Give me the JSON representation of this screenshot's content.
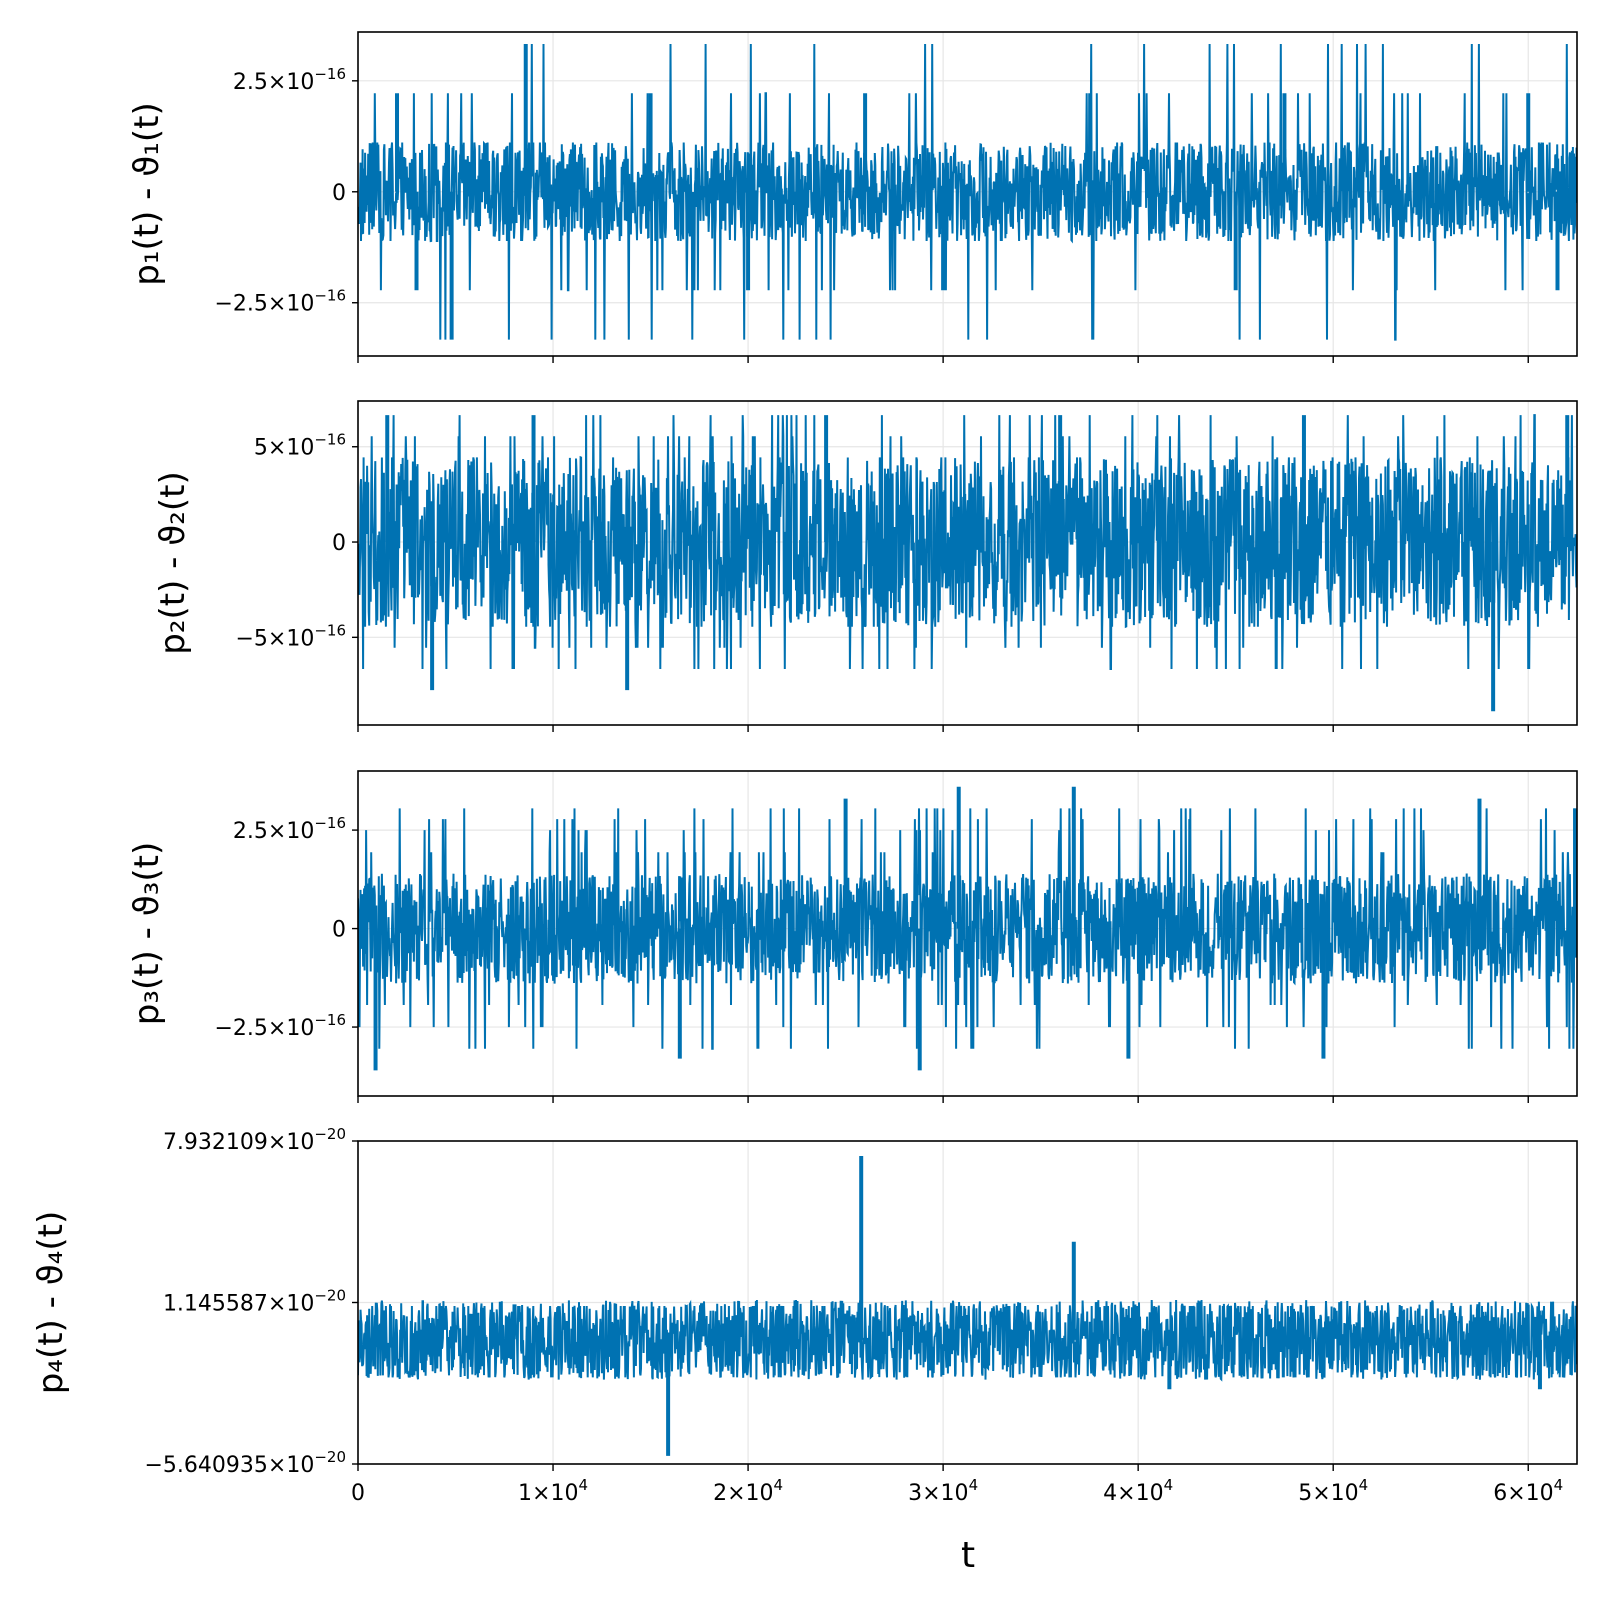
{
  "figure": {
    "line_color": "#0072b2",
    "grid_color": "#e6e6e6",
    "frame_color": "#000000",
    "xlabel": "t",
    "x_ticks": [
      {
        "value": 0,
        "mant": "0",
        "exp": ""
      },
      {
        "value": 10000,
        "mant": "1×10",
        "exp": "4"
      },
      {
        "value": 20000,
        "mant": "2×10",
        "exp": "4"
      },
      {
        "value": 30000,
        "mant": "3×10",
        "exp": "4"
      },
      {
        "value": 40000,
        "mant": "4×10",
        "exp": "4"
      },
      {
        "value": 50000,
        "mant": "5×10",
        "exp": "4"
      },
      {
        "value": 60000,
        "mant": "6×10",
        "exp": "4"
      }
    ]
  },
  "chart_data": [
    {
      "type": "line",
      "ylabel": "p₁(t) - ϑ₁(t)",
      "xlim": [
        0,
        62500
      ],
      "ylim": [
        -3.7e-16,
        3.6e-16
      ],
      "y_ticks": [
        {
          "value": 2.5e-16,
          "mant": "2.5×10",
          "exp": "−16"
        },
        {
          "value": 0,
          "mant": "0",
          "exp": ""
        },
        {
          "value": -2.5e-16,
          "mant": "−2.5×10",
          "exp": "−16"
        }
      ],
      "series": [
        {
          "signal": {
            "levels": [
              -3.33e-16,
              -2.22e-16,
              -1.11e-16,
              0,
              1.11e-16,
              2.22e-16,
              3.33e-16
            ],
            "core_range": [
              -1.11e-16,
              1.11e-16
            ]
          },
          "peaks": [
            [
              8600,
              3.33e-16
            ],
            [
              4800,
              -3.33e-16
            ],
            [
              2000,
              2.22e-16
            ],
            [
              15000,
              2.22e-16
            ],
            [
              26000,
              2.22e-16
            ],
            [
              47500,
              2.22e-16
            ],
            [
              60000,
              2.22e-16
            ],
            [
              3000,
              -2.22e-16
            ],
            [
              20000,
              -2.22e-16
            ],
            [
              30000,
              -2.22e-16
            ],
            [
              45000,
              -2.22e-16
            ],
            [
              61500,
              -2.22e-16
            ]
          ]
        }
      ]
    },
    {
      "type": "line",
      "ylabel": "p₂(t) - ϑ₂(t)",
      "xlim": [
        0,
        62500
      ],
      "ylim": [
        -9.6e-16,
        7.4e-16
      ],
      "y_ticks": [
        {
          "value": 5e-16,
          "mant": "5×10",
          "exp": "−16"
        },
        {
          "value": 0,
          "mant": "0",
          "exp": ""
        },
        {
          "value": -5e-16,
          "mant": "−5×10",
          "exp": "−16"
        }
      ],
      "series": [
        {
          "signal": {
            "levels": [
              -6.66e-16,
              -5.55e-16,
              -4.44e-16,
              4.44e-16,
              5.55e-16,
              6.66e-16
            ],
            "core_range": [
              -4.44e-16,
              4.44e-16
            ]
          },
          "peaks": [
            [
              58200,
              -8.88e-16
            ],
            [
              3800,
              -7.77e-16
            ],
            [
              13800,
              -7.77e-16
            ],
            [
              1500,
              6.66e-16
            ],
            [
              9000,
              6.66e-16
            ],
            [
              24000,
              6.66e-16
            ],
            [
              36000,
              6.66e-16
            ],
            [
              48500,
              6.66e-16
            ],
            [
              62000,
              6.66e-16
            ]
          ]
        }
      ]
    },
    {
      "type": "line",
      "ylabel": "p₃(t) - ϑ₃(t)",
      "xlim": [
        0,
        62500
      ],
      "ylim": [
        -4.25e-16,
        4e-16
      ],
      "y_ticks": [
        {
          "value": 2.5e-16,
          "mant": "2.5×10",
          "exp": "−16"
        },
        {
          "value": 0,
          "mant": "0",
          "exp": ""
        },
        {
          "value": -2.5e-16,
          "mant": "−2.5×10",
          "exp": "−16"
        }
      ],
      "series": [
        {
          "signal": {
            "levels": [
              -3.05e-16,
              -2.5e-16,
              -1.94e-16,
              1.94e-16,
              2.5e-16,
              2.78e-16,
              3.05e-16
            ],
            "core_range": [
              -1.4e-16,
              1.4e-16
            ]
          },
          "peaks": [
            [
              900,
              -3.6e-16
            ],
            [
              30800,
              3.6e-16
            ],
            [
              36700,
              3.6e-16
            ],
            [
              28800,
              -3.6e-16
            ],
            [
              16500,
              -3.3e-16
            ],
            [
              39500,
              -3.3e-16
            ],
            [
              49500,
              -3.3e-16
            ],
            [
              25000,
              3.3e-16
            ],
            [
              57500,
              3.3e-16
            ],
            [
              62400,
              3.05e-16
            ]
          ]
        }
      ]
    },
    {
      "type": "line",
      "ylabel": "p₄(t) - ϑ₄(t)",
      "xlim": [
        0,
        62500
      ],
      "ylim": [
        -5.640935e-20,
        7.932109e-20
      ],
      "y_ticks": [
        {
          "value": 7.932109e-20,
          "mant": "7.932109×10",
          "exp": "−20"
        },
        {
          "value": 1.145587e-20,
          "mant": "1.145587×10",
          "exp": "−20"
        },
        {
          "value": -5.640935e-20,
          "mant": "−5.640935×10",
          "exp": "−20"
        }
      ],
      "series": [
        {
          "signal": {
            "levels": [
              -2e-20,
              0,
              1e-20
            ],
            "core_range": [
              -2.1e-20,
              1.25e-20
            ]
          },
          "peaks": [
            [
              25800,
              7.3e-20
            ],
            [
              36700,
              3.7e-20
            ],
            [
              15900,
              -5.3e-20
            ],
            [
              41600,
              -2.5e-20
            ],
            [
              60600,
              -2.5e-20
            ]
          ]
        }
      ]
    }
  ]
}
